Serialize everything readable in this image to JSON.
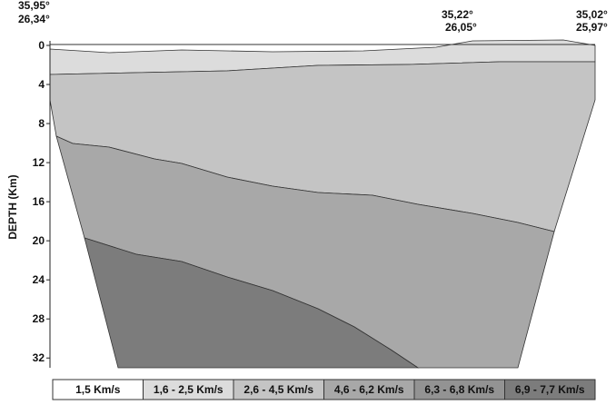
{
  "axis": {
    "label": "DEPTH (Km)",
    "ylim": [
      0,
      33
    ],
    "yticks": [
      0,
      4,
      8,
      12,
      16,
      20,
      24,
      28,
      32
    ]
  },
  "coordinates": [
    {
      "lat": "35,95°",
      "lon": "26,34°"
    },
    {
      "lat": "35,22°",
      "lon": "26,05°"
    },
    {
      "lat": "35,02°",
      "lon": "25,97°"
    }
  ],
  "legend": [
    {
      "label": "1,5 Km/s",
      "color": "#ffffff"
    },
    {
      "label": "1,6 - 2,5 Km/s",
      "color": "#dcdcdc"
    },
    {
      "label": "2,6 - 4,5 Km/s",
      "color": "#c4c4c4"
    },
    {
      "label": "4,6 - 6,2 Km/s",
      "color": "#a8a8a8"
    },
    {
      "label": "6,3 - 6,8 Km/s",
      "color": "#939393"
    },
    {
      "label": "6,9 - 7,7 Km/s",
      "color": "#7c7c7c"
    }
  ]
}
